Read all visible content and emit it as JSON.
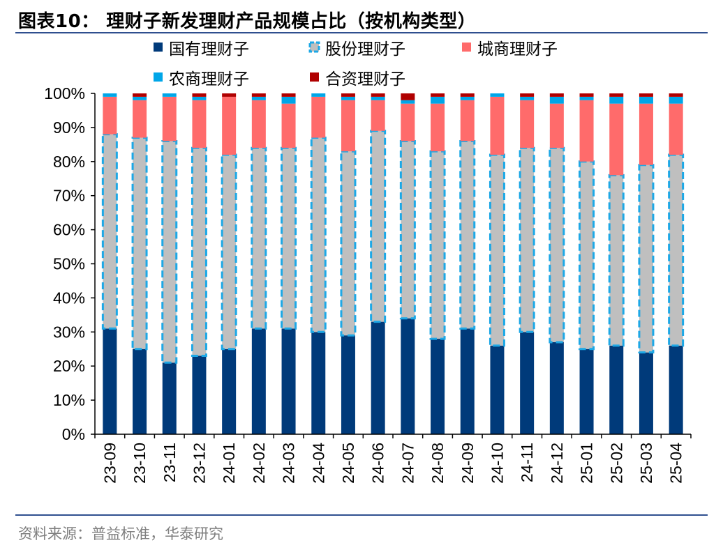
{
  "title": "图表10：  理财子新发理财产品规模占比（按机构类型）",
  "source": "资料来源：普益标准，华泰研究",
  "colors": {
    "rule": "#2f4f8f",
    "state_owned": "#003a7a",
    "joint_stock_fill": "#bfbfbf",
    "joint_stock_border": "#1da8e6",
    "city_commercial": "#ff6b6b",
    "rural_commercial": "#00a6e8",
    "joint_venture": "#b00000"
  },
  "chart_data": {
    "type": "bar",
    "stacked": true,
    "percent": true,
    "title": "理财子新发理财产品规模占比（按机构类型）",
    "xlabel": "",
    "ylabel": "",
    "ylim": [
      0,
      100
    ],
    "yticks": [
      "0%",
      "10%",
      "20%",
      "30%",
      "40%",
      "50%",
      "60%",
      "70%",
      "80%",
      "90%",
      "100%"
    ],
    "grid": false,
    "legend_position": "top",
    "categories": [
      "23-09",
      "23-10",
      "23-11",
      "23-12",
      "24-01",
      "24-02",
      "24-03",
      "24-04",
      "24-05",
      "24-06",
      "24-07",
      "24-08",
      "24-09",
      "24-10",
      "24-11",
      "24-12",
      "25-01",
      "25-02",
      "25-03",
      "25-04"
    ],
    "series": [
      {
        "name": "国有理财子",
        "color": "#003a7a",
        "values": [
          31,
          25,
          21,
          23,
          25,
          31,
          31,
          30,
          29,
          33,
          34,
          28,
          31,
          26,
          30,
          27,
          25,
          26,
          24,
          26
        ]
      },
      {
        "name": "股份理财子",
        "color": "#bfbfbf",
        "values": [
          57,
          62,
          65,
          61,
          57,
          53,
          53,
          57,
          54,
          56,
          52,
          55,
          55,
          56,
          54,
          57,
          55,
          50,
          55,
          56
        ]
      },
      {
        "name": "城商理财子",
        "color": "#ff6b6b",
        "values": [
          11,
          11,
          13,
          14,
          17,
          14,
          13,
          12,
          15,
          9,
          11,
          14,
          12,
          17,
          14,
          13,
          18,
          21,
          18,
          15
        ]
      },
      {
        "name": "农商理财子",
        "color": "#00a6e8",
        "values": [
          1,
          1,
          1,
          1,
          0,
          1,
          2,
          1,
          1,
          1,
          1,
          2,
          1,
          1,
          1,
          2,
          1,
          2,
          2,
          2
        ]
      },
      {
        "name": "合资理财子",
        "color": "#b00000",
        "values": [
          0,
          1,
          0,
          1,
          1,
          1,
          1,
          0,
          1,
          1,
          2,
          1,
          1,
          0,
          1,
          1,
          1,
          1,
          1,
          1
        ]
      }
    ]
  }
}
